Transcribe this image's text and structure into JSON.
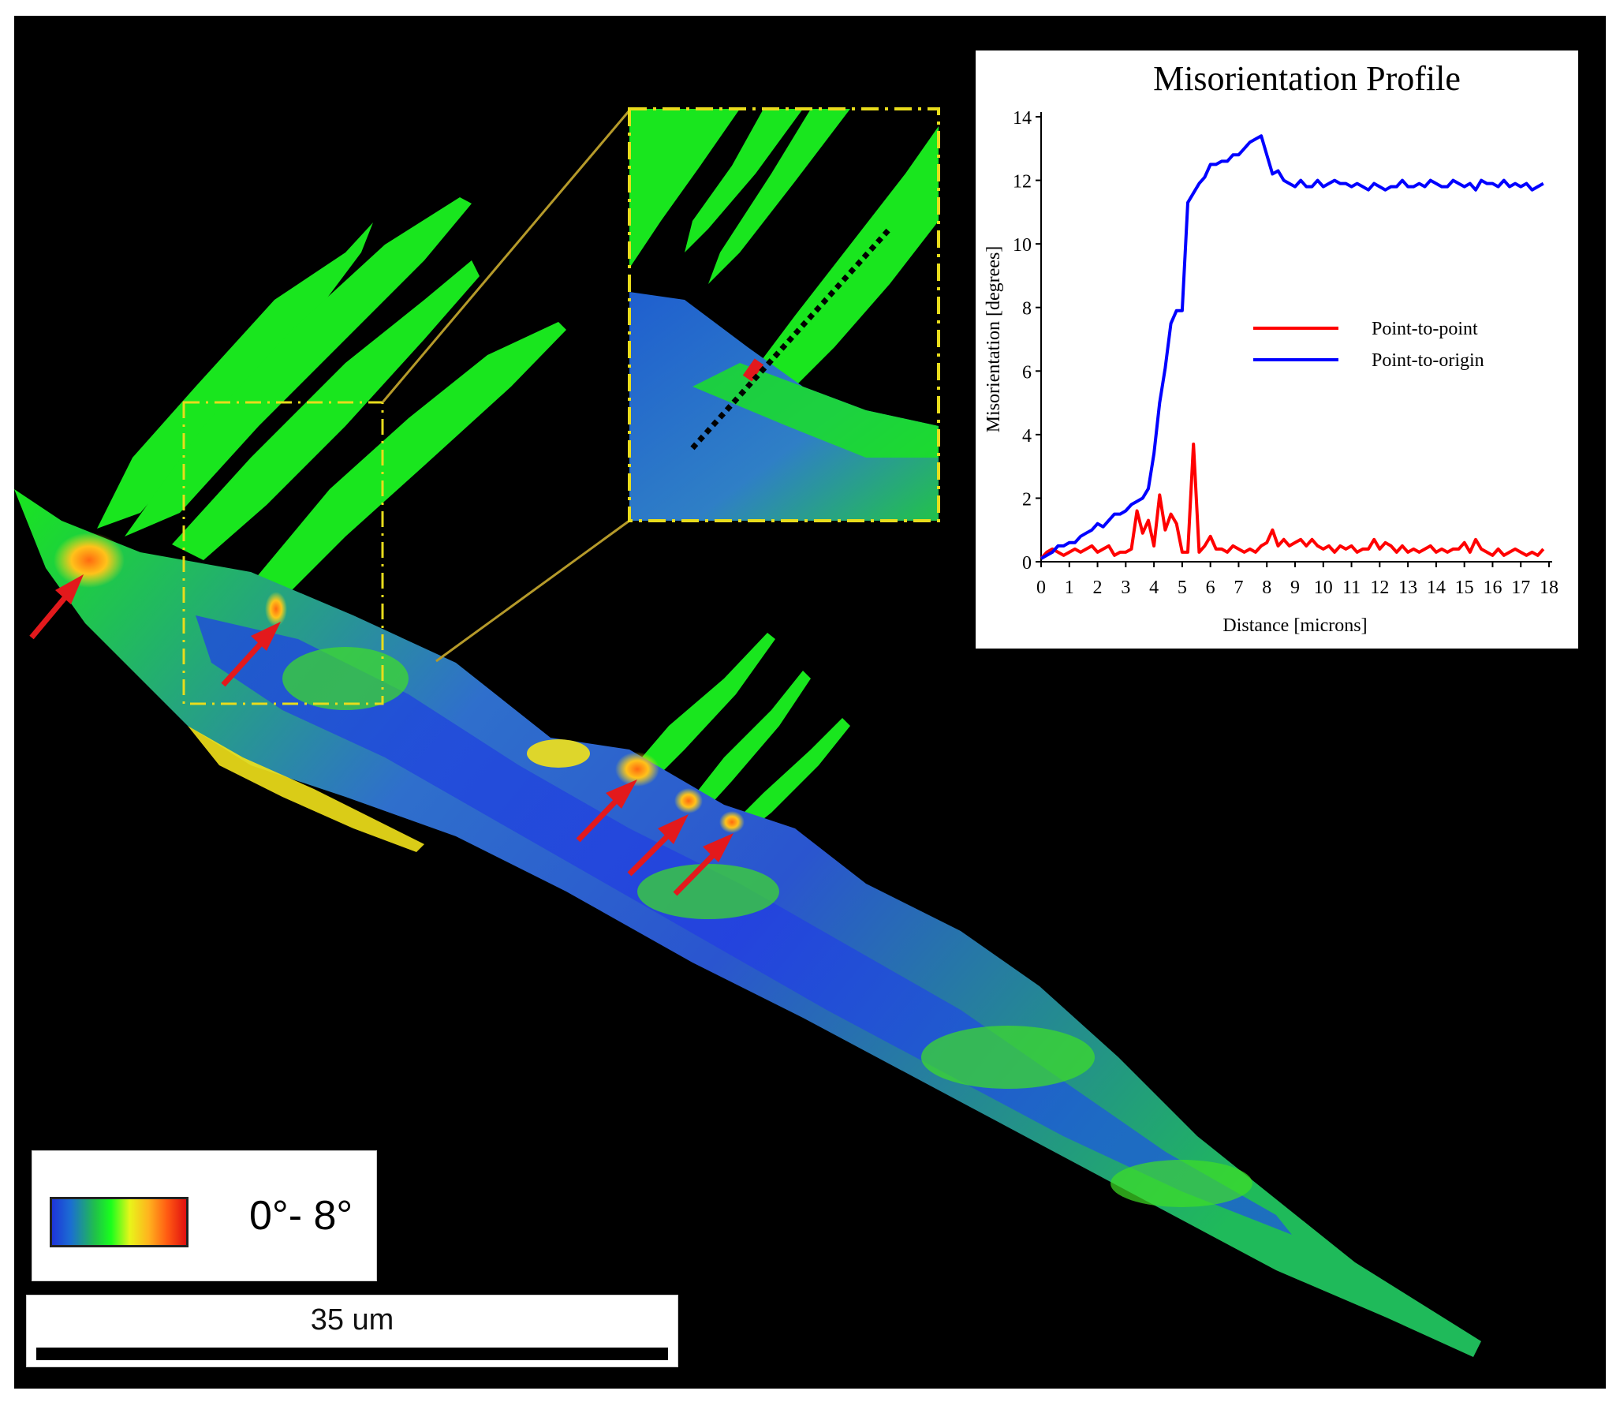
{
  "figure": {
    "legend": {
      "range_label": "0°- 8°",
      "gradient_colors": [
        "#1e35d9",
        "#1b6ed2",
        "#20c04a",
        "#19ff1c",
        "#e8f51a",
        "#ffb31e",
        "#ff5a12",
        "#e01010"
      ]
    },
    "scale_bar": {
      "label": "35 um"
    },
    "colors": {
      "background": "#000000",
      "grain_green": "#19e61e",
      "grain_blue": "#2a55cf",
      "highlight_yellow": "#f2e21a",
      "arrow_red": "#e3191c",
      "inset_frame": "#e8dc1c",
      "connector": "#b59a2a"
    },
    "arrows_count": 6
  },
  "chart_data": {
    "type": "line",
    "title": "Misorientation Profile",
    "xlabel": "Distance [microns]",
    "ylabel": "Misorientation [degrees]",
    "xlim": [
      0,
      18
    ],
    "ylim": [
      0,
      14
    ],
    "xticks": [
      0,
      1,
      2,
      3,
      4,
      5,
      6,
      7,
      8,
      9,
      10,
      11,
      12,
      13,
      14,
      15,
      16,
      17,
      18
    ],
    "yticks": [
      0,
      2,
      4,
      6,
      8,
      10,
      12,
      14
    ],
    "legend_position": "center-right",
    "series": [
      {
        "name": "Point-to-point",
        "color": "#ff0000",
        "x": [
          0,
          0.2,
          0.4,
          0.6,
          0.8,
          1.0,
          1.2,
          1.4,
          1.6,
          1.8,
          2.0,
          2.2,
          2.4,
          2.6,
          2.8,
          3.0,
          3.2,
          3.4,
          3.6,
          3.8,
          4.0,
          4.2,
          4.4,
          4.6,
          4.8,
          5.0,
          5.2,
          5.4,
          5.6,
          5.8,
          6.0,
          6.2,
          6.4,
          6.6,
          6.8,
          7.0,
          7.2,
          7.4,
          7.6,
          7.8,
          8.0,
          8.2,
          8.4,
          8.6,
          8.8,
          9.0,
          9.2,
          9.4,
          9.6,
          9.8,
          10.0,
          10.2,
          10.4,
          10.6,
          10.8,
          11.0,
          11.2,
          11.4,
          11.6,
          11.8,
          12.0,
          12.2,
          12.4,
          12.6,
          12.8,
          13.0,
          13.2,
          13.4,
          13.6,
          13.8,
          14.0,
          14.2,
          14.4,
          14.6,
          14.8,
          15.0,
          15.2,
          15.4,
          15.6,
          15.8,
          16.0,
          16.2,
          16.4,
          16.6,
          16.8,
          17.0,
          17.2,
          17.4,
          17.6,
          17.8
        ],
        "values": [
          0.1,
          0.3,
          0.4,
          0.3,
          0.2,
          0.3,
          0.4,
          0.3,
          0.4,
          0.5,
          0.3,
          0.4,
          0.5,
          0.2,
          0.3,
          0.3,
          0.4,
          1.6,
          0.9,
          1.3,
          0.5,
          2.1,
          1.0,
          1.5,
          1.2,
          0.3,
          0.3,
          3.7,
          0.3,
          0.5,
          0.8,
          0.4,
          0.4,
          0.3,
          0.5,
          0.4,
          0.3,
          0.4,
          0.3,
          0.5,
          0.6,
          1.0,
          0.5,
          0.7,
          0.5,
          0.6,
          0.7,
          0.5,
          0.7,
          0.5,
          0.4,
          0.5,
          0.3,
          0.5,
          0.4,
          0.5,
          0.3,
          0.4,
          0.4,
          0.7,
          0.4,
          0.6,
          0.5,
          0.3,
          0.5,
          0.3,
          0.4,
          0.3,
          0.4,
          0.5,
          0.3,
          0.4,
          0.3,
          0.4,
          0.4,
          0.6,
          0.3,
          0.7,
          0.4,
          0.3,
          0.2,
          0.4,
          0.2,
          0.3,
          0.4,
          0.3,
          0.2,
          0.3,
          0.2,
          0.4
        ]
      },
      {
        "name": "Point-to-origin",
        "color": "#0000ff",
        "x": [
          0,
          0.2,
          0.4,
          0.6,
          0.8,
          1.0,
          1.2,
          1.4,
          1.6,
          1.8,
          2.0,
          2.2,
          2.4,
          2.6,
          2.8,
          3.0,
          3.2,
          3.4,
          3.6,
          3.8,
          4.0,
          4.2,
          4.4,
          4.6,
          4.8,
          5.0,
          5.2,
          5.4,
          5.6,
          5.8,
          6.0,
          6.2,
          6.4,
          6.6,
          6.8,
          7.0,
          7.2,
          7.4,
          7.6,
          7.8,
          8.0,
          8.2,
          8.4,
          8.6,
          8.8,
          9.0,
          9.2,
          9.4,
          9.6,
          9.8,
          10.0,
          10.2,
          10.4,
          10.6,
          10.8,
          11.0,
          11.2,
          11.4,
          11.6,
          11.8,
          12.0,
          12.2,
          12.4,
          12.6,
          12.8,
          13.0,
          13.2,
          13.4,
          13.6,
          13.8,
          14.0,
          14.2,
          14.4,
          14.6,
          14.8,
          15.0,
          15.2,
          15.4,
          15.6,
          15.8,
          16.0,
          16.2,
          16.4,
          16.6,
          16.8,
          17.0,
          17.2,
          17.4,
          17.6,
          17.8
        ],
        "values": [
          0.1,
          0.2,
          0.3,
          0.5,
          0.5,
          0.6,
          0.6,
          0.8,
          0.9,
          1.0,
          1.2,
          1.1,
          1.3,
          1.5,
          1.5,
          1.6,
          1.8,
          1.9,
          2.0,
          2.3,
          3.4,
          5.0,
          6.1,
          7.5,
          7.9,
          7.9,
          11.3,
          11.6,
          11.9,
          12.1,
          12.5,
          12.5,
          12.6,
          12.6,
          12.8,
          12.8,
          13.0,
          13.2,
          13.3,
          13.4,
          12.8,
          12.2,
          12.3,
          12.0,
          11.9,
          11.8,
          12.0,
          11.8,
          11.8,
          12.0,
          11.8,
          11.9,
          12.0,
          11.9,
          11.9,
          11.8,
          11.9,
          11.8,
          11.7,
          11.9,
          11.8,
          11.7,
          11.8,
          11.8,
          12.0,
          11.8,
          11.8,
          11.9,
          11.8,
          12.0,
          11.9,
          11.8,
          11.8,
          12.0,
          11.9,
          11.8,
          11.9,
          11.7,
          12.0,
          11.9,
          11.9,
          11.8,
          12.0,
          11.8,
          11.9,
          11.8,
          11.9,
          11.7,
          11.8,
          11.9
        ]
      }
    ]
  }
}
